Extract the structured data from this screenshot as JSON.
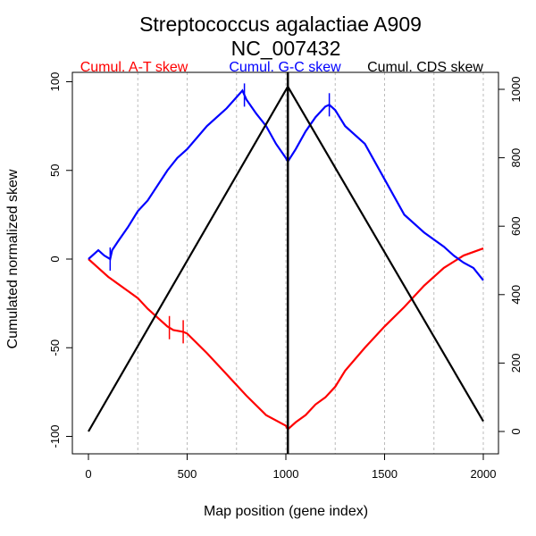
{
  "chart_data": {
    "type": "line",
    "title": "Streptococcus agalactiae A909",
    "subtitle": "NC_007432",
    "xlabel": "Map position (gene index)",
    "ylabel": "Cumulated normalized skew",
    "xlim": [
      0,
      2000
    ],
    "ylim": [
      -100,
      100
    ],
    "y2lim": [
      0,
      1000
    ],
    "xticks": [
      "0",
      "500",
      "1000",
      "1500",
      "2000"
    ],
    "xtick_values": [
      0,
      500,
      1000,
      1500,
      2000
    ],
    "yticks": [
      "-100",
      "-50",
      "0",
      "50",
      "100"
    ],
    "ytick_values": [
      -100,
      -50,
      0,
      50,
      100
    ],
    "y2ticks": [
      "0",
      "200",
      "400",
      "600",
      "800",
      "1000"
    ],
    "y2tick_values": [
      0,
      200,
      400,
      600,
      800,
      1000
    ],
    "grid_x": [
      250,
      500,
      750,
      1000,
      1250,
      1500,
      1750,
      2000
    ],
    "legend": [
      {
        "label": "Cumul. A-T skew",
        "color": "#ff0000"
      },
      {
        "label": "Cumul. G-C skew",
        "color": "#0000ff"
      },
      {
        "label": "Cumul. CDS skew",
        "color": "#000000"
      }
    ],
    "vertical_marker_x": 1010,
    "series": [
      {
        "name": "Cumul. A-T skew",
        "color": "#ff0000",
        "axis": "left",
        "x": [
          0,
          50,
          100,
          200,
          250,
          300,
          400,
          430,
          480,
          500,
          600,
          700,
          800,
          900,
          1000,
          1010,
          1050,
          1100,
          1150,
          1200,
          1250,
          1300,
          1400,
          1500,
          1600,
          1700,
          1800,
          1900,
          1950,
          2000
        ],
        "y": [
          0,
          -5,
          -10,
          -18,
          -22,
          -28,
          -38,
          -40,
          -41,
          -42,
          -53,
          -65,
          -77,
          -88,
          -94,
          -96,
          -92,
          -88,
          -82,
          -78,
          -72,
          -63,
          -50,
          -38,
          -27,
          -15,
          -5,
          2,
          4,
          6
        ],
        "ticks": [
          410,
          480
        ]
      },
      {
        "name": "Cumul. G-C skew",
        "color": "#0000ff",
        "axis": "left",
        "x": [
          0,
          50,
          80,
          110,
          120,
          150,
          200,
          250,
          300,
          400,
          450,
          500,
          600,
          700,
          780,
          800,
          850,
          900,
          950,
          1000,
          1010,
          1050,
          1100,
          1150,
          1200,
          1220,
          1250,
          1300,
          1400,
          1500,
          1600,
          1700,
          1800,
          1850,
          1900,
          1950,
          2000
        ],
        "y": [
          0,
          5,
          2,
          0,
          5,
          10,
          18,
          27,
          33,
          50,
          57,
          62,
          75,
          85,
          95,
          90,
          82,
          75,
          65,
          57,
          55,
          62,
          72,
          80,
          86,
          87,
          84,
          75,
          65,
          45,
          25,
          15,
          7,
          2,
          -2,
          -5,
          -12
        ],
        "ticks": [
          110,
          790,
          1220
        ]
      },
      {
        "name": "Cumul. CDS skew",
        "color": "#000000",
        "axis": "right",
        "x": [
          0,
          1010,
          2000
        ],
        "y": [
          0,
          1008,
          30
        ]
      }
    ]
  }
}
